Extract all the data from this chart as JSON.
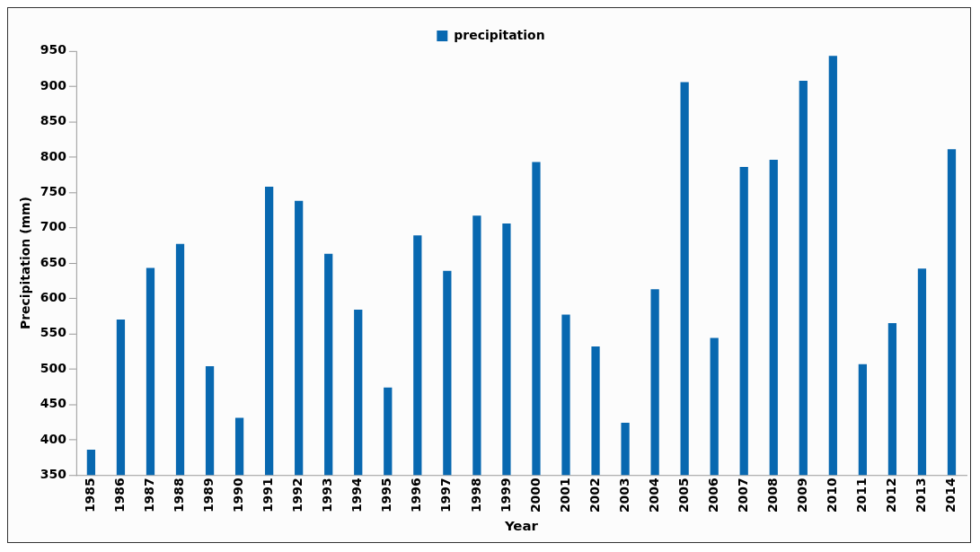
{
  "chart_data": {
    "type": "bar",
    "xlabel": "Year",
    "ylabel": "Precipitation (mm)",
    "categories": [
      "1985",
      "1986",
      "1987",
      "1988",
      "1989",
      "1990",
      "1991",
      "1992",
      "1993",
      "1994",
      "1995",
      "1996",
      "1997",
      "1998",
      "1999",
      "2000",
      "2001",
      "2002",
      "2003",
      "2004",
      "2005",
      "2006",
      "2007",
      "2008",
      "2009",
      "2010",
      "2011",
      "2012",
      "2013",
      "2014"
    ],
    "series": [
      {
        "name": "precipitation",
        "color": "#0868b0",
        "values": [
          386,
          570,
          643,
          677,
          504,
          431,
          758,
          738,
          663,
          584,
          474,
          689,
          639,
          717,
          706,
          793,
          577,
          532,
          424,
          613,
          906,
          544,
          786,
          796,
          908,
          943,
          507,
          565,
          642,
          811
        ]
      }
    ],
    "ylim": [
      350,
      950
    ],
    "yticks": [
      350,
      400,
      450,
      500,
      550,
      600,
      650,
      700,
      750,
      800,
      850,
      900,
      950
    ],
    "grid": false,
    "legend": "top"
  }
}
